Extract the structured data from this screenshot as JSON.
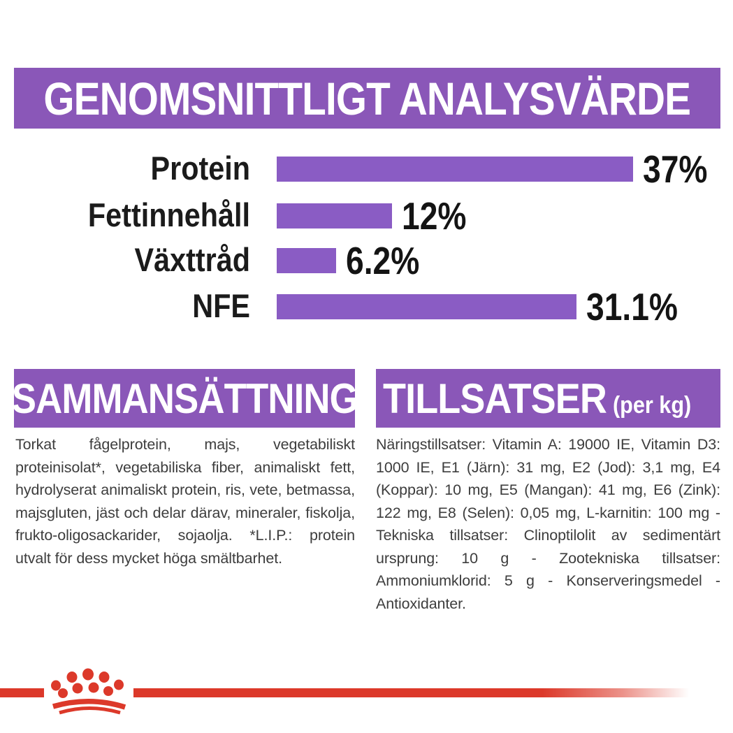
{
  "colors": {
    "banner_purple": "#8a57b8",
    "bar_purple": "#8a5cc4",
    "brand_red": "#dc392a",
    "body_text": "#3d3d3d"
  },
  "header": {
    "title": "GENOMSNITTLIGT ANALYSVÄRDE"
  },
  "chart_data": {
    "type": "bar",
    "orientation": "horizontal",
    "categories": [
      "Protein",
      "Fettinnehåll",
      "Växttråd",
      "NFE"
    ],
    "values": [
      37,
      12,
      6.2,
      31.1
    ],
    "value_labels": [
      "37%",
      "12%",
      "6.2%",
      "31.1%"
    ],
    "unit": "%",
    "xlim": [
      0,
      37
    ],
    "bar_color": "#8a5cc4",
    "grid": false,
    "legend": false
  },
  "composition": {
    "title": "SAMMANSÄTTNING",
    "body": "Torkat fågelprotein, majs, vegetabiliskt proteinisolat*, vegetabiliska fiber, animaliskt fett, hydrolyserat animaliskt protein, ris, vete, betmassa, majsgluten, jäst och delar därav, mineraler, fiskolja, frukto-oligosackarider, sojaolja. *L.I.P.: protein utvalt för dess mycket höga smältbarhet."
  },
  "additives": {
    "title": "TILLSATSER",
    "title_suffix": "(per kg)",
    "body": "Näringstillsatser: Vitamin A: 19000 IE, Vitamin D3: 1000 IE, E1 (Järn): 31 mg, E2 (Jod): 3,1 mg, E4 (Koppar): 10 mg, E5 (Mangan): 41 mg, E6 (Zink): 122 mg, E8 (Selen): 0,05 mg, L-karnitin: 100 mg - Tekniska tillsatser: Clinoptilolit av sedimentärt ursprung: 10 g - Zootekniska tillsatser: Ammoniumklorid: 5 g - Konserveringsmedel - Antioxidanter."
  },
  "footer": {
    "brand_logo": "royal-canin-crown"
  }
}
